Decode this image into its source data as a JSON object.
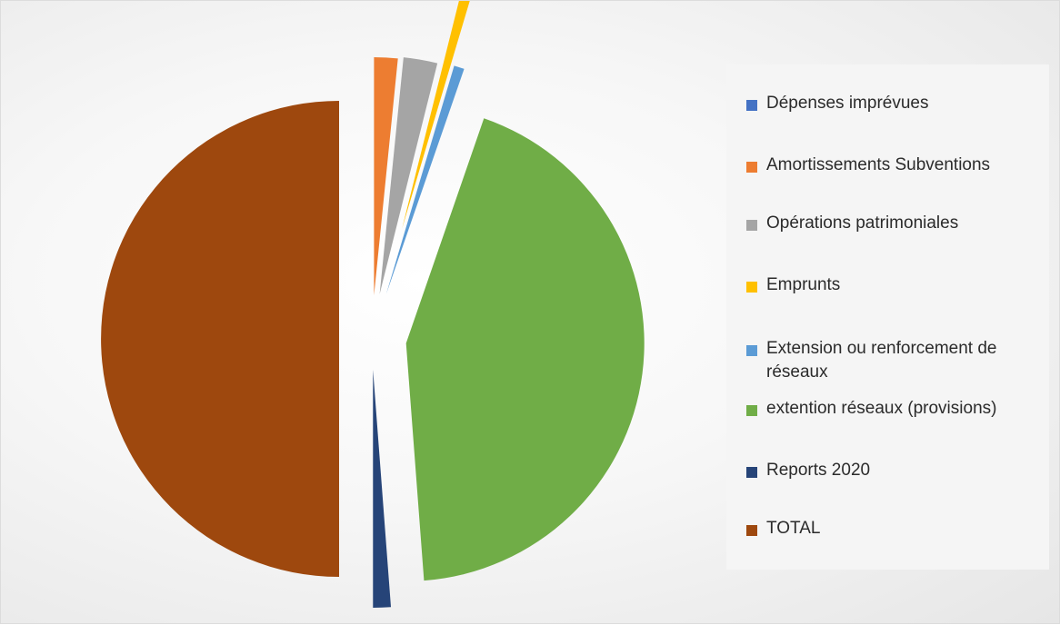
{
  "chart_data": {
    "type": "pie",
    "exploded": true,
    "legend_position": "right",
    "slices": [
      {
        "name": "Dépenses imprévues",
        "value": 0,
        "color": "#4472c4"
      },
      {
        "name": "Amortissements Subventions",
        "value": 1.6,
        "color": "#ed7d31"
      },
      {
        "name": "Opérations patrimoniales",
        "value": 2.3,
        "color": "#a5a5a5"
      },
      {
        "name": "Emprunts",
        "value": 0.7,
        "color": "#ffc000"
      },
      {
        "name": "Extension ou renforcement de réseaux",
        "value": 0.7,
        "color": "#5b9bd5"
      },
      {
        "name": "extention réseaux (provisions)",
        "value": 43.5,
        "color": "#70ad47"
      },
      {
        "name": "Reports 2020",
        "value": 1.2,
        "color": "#264478"
      },
      {
        "name": "TOTAL",
        "value": 50,
        "color": "#9e480e"
      }
    ]
  }
}
